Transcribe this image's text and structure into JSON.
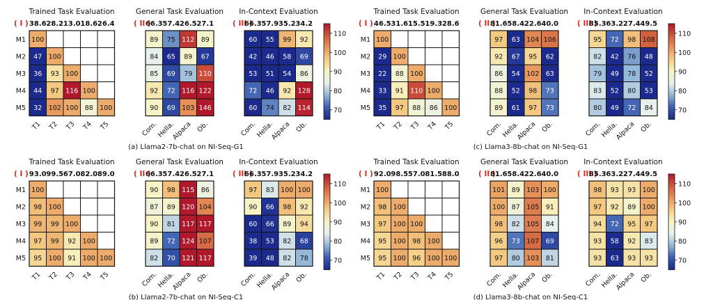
{
  "section_titles": [
    "Trained Task Evaluation",
    "General Task Evaluation",
    "In-Context Evaluation"
  ],
  "roman_labels": [
    "( I )",
    "( II )",
    "( III )"
  ],
  "colorbar_ticks": [
    70,
    80,
    90,
    100,
    110
  ],
  "colormap": [
    "#1b2a8c",
    "#3a5bb0",
    "#8fb3d6",
    "#e6f0ee",
    "#f8f4c6",
    "#f4cf86",
    "#e8955a",
    "#cf5a3e",
    "#b2182b"
  ],
  "chart_data": [
    {
      "type": "heatmap",
      "caption": "(a) Llama2-7b-chat on NI-Seq-G1",
      "rows": [
        "M1",
        "M2",
        "M3",
        "M4",
        "M5"
      ],
      "value_range": [
        65,
        115
      ],
      "panels": [
        {
          "columns": [
            "T1",
            "T2",
            "T3",
            "T4",
            "T5"
          ],
          "baseline": [
            "38.6",
            "28.2",
            "13.0",
            "18.6",
            "26.4"
          ],
          "values": [
            [
              100,
              null,
              null,
              null,
              null
            ],
            [
              47,
              100,
              null,
              null,
              null
            ],
            [
              36,
              93,
              100,
              null,
              null
            ],
            [
              44,
              97,
              116,
              100,
              null
            ],
            [
              32,
              102,
              100,
              88,
              100
            ]
          ]
        },
        {
          "columns": [
            "Com.",
            "Hella.",
            "Alpaca",
            "Ob."
          ],
          "baseline": [
            "66.3",
            "57.4",
            "26.5",
            "27.1"
          ],
          "values": [
            [
              89,
              75,
              112,
              89
            ],
            [
              84,
              65,
              89,
              67
            ],
            [
              85,
              69,
              79,
              110
            ],
            [
              92,
              72,
              116,
              122
            ],
            [
              90,
              69,
              103,
              146
            ]
          ]
        },
        {
          "columns": [
            "Com.",
            "Hella.",
            "Alpaca",
            "Ob."
          ],
          "baseline": [
            "66.3",
            "57.9",
            "35.2",
            "34.2"
          ],
          "values": [
            [
              60,
              55,
              99,
              92
            ],
            [
              42,
              46,
              58,
              69
            ],
            [
              53,
              51,
              54,
              86
            ],
            [
              72,
              46,
              92,
              128
            ],
            [
              60,
              74,
              82,
              114
            ]
          ]
        }
      ]
    },
    {
      "type": "heatmap",
      "caption": "(c) Llama3-8b-chat on NI-Seq-G1",
      "rows": [
        "M1",
        "M2",
        "M3",
        "M4",
        "M5"
      ],
      "value_range": [
        65,
        115
      ],
      "panels": [
        {
          "columns": [
            "T1",
            "T2",
            "T3",
            "T4",
            "T5"
          ],
          "baseline": [
            "46.5",
            "31.6",
            "15.5",
            "19.3",
            "28.6"
          ],
          "values": [
            [
              100,
              null,
              null,
              null,
              null
            ],
            [
              29,
              100,
              null,
              null,
              null
            ],
            [
              22,
              88,
              100,
              null,
              null
            ],
            [
              33,
              91,
              110,
              100,
              null
            ],
            [
              35,
              97,
              88,
              86,
              100
            ]
          ]
        },
        {
          "columns": [
            "Com.",
            "Hella.",
            "Alpaca",
            "Ob."
          ],
          "baseline": [
            "81.6",
            "58.4",
            "22.6",
            "40.0"
          ],
          "values": [
            [
              97,
              63,
              104,
              106
            ],
            [
              92,
              67,
              95,
              62
            ],
            [
              86,
              54,
              102,
              63
            ],
            [
              88,
              52,
              98,
              73
            ],
            [
              89,
              61,
              97,
              73
            ]
          ]
        },
        {
          "columns": [
            "Com.",
            "Hella.",
            "Alpaca",
            "Ob."
          ],
          "baseline": [
            "85.3",
            "63.2",
            "27.4",
            "49.5"
          ],
          "values": [
            [
              95,
              72,
              98,
              108
            ],
            [
              82,
              42,
              76,
              48
            ],
            [
              79,
              49,
              78,
              52
            ],
            [
              83,
              52,
              80,
              53
            ],
            [
              80,
              49,
              72,
              84
            ]
          ]
        }
      ]
    },
    {
      "type": "heatmap",
      "caption": "(b) Llama2-7b-chat on NI-Seq-C1",
      "rows": [
        "M1",
        "M2",
        "M3",
        "M4",
        "M5"
      ],
      "value_range": [
        65,
        115
      ],
      "panels": [
        {
          "columns": [
            "T1",
            "T2",
            "T3",
            "T4",
            "T5"
          ],
          "baseline": [
            "93.0",
            "99.5",
            "67.0",
            "82.0",
            "89.0"
          ],
          "values": [
            [
              100,
              null,
              null,
              null,
              null
            ],
            [
              98,
              100,
              null,
              null,
              null
            ],
            [
              99,
              99,
              100,
              null,
              null
            ],
            [
              97,
              99,
              92,
              100,
              null
            ],
            [
              95,
              100,
              91,
              100,
              100
            ]
          ]
        },
        {
          "columns": [
            "Com.",
            "Hella.",
            "Alpaca",
            "Ob."
          ],
          "baseline": [
            "66.3",
            "57.4",
            "26.5",
            "27.1"
          ],
          "values": [
            [
              90,
              98,
              115,
              86
            ],
            [
              87,
              89,
              120,
              104
            ],
            [
              90,
              81,
              117,
              117
            ],
            [
              89,
              72,
              124,
              107
            ],
            [
              82,
              70,
              121,
              117
            ]
          ]
        },
        {
          "columns": [
            "Com.",
            "Hella.",
            "Alpaca",
            "Ob."
          ],
          "baseline": [
            "66.3",
            "57.9",
            "35.2",
            "34.2"
          ],
          "values": [
            [
              97,
              83,
              100,
              100
            ],
            [
              90,
              66,
              98,
              92
            ],
            [
              60,
              66,
              89,
              94
            ],
            [
              38,
              53,
              82,
              68
            ],
            [
              39,
              48,
              82,
              78
            ]
          ]
        }
      ]
    },
    {
      "type": "heatmap",
      "caption": "(d) Llama3-8b-chat on NI-Seq-C1",
      "rows": [
        "M1",
        "M2",
        "M3",
        "M4",
        "M5"
      ],
      "value_range": [
        65,
        115
      ],
      "panels": [
        {
          "columns": [
            "T1",
            "T2",
            "T3",
            "T4",
            "T5"
          ],
          "baseline": [
            "92.0",
            "98.5",
            "57.0",
            "81.5",
            "88.0"
          ],
          "values": [
            [
              100,
              null,
              null,
              null,
              null
            ],
            [
              98,
              100,
              null,
              null,
              null
            ],
            [
              97,
              100,
              100,
              null,
              null
            ],
            [
              95,
              100,
              98,
              100,
              null
            ],
            [
              95,
              100,
              96,
              100,
              100
            ]
          ]
        },
        {
          "columns": [
            "Com.",
            "Hella.",
            "Alpaca",
            "Ob."
          ],
          "baseline": [
            "81.6",
            "58.4",
            "22.6",
            "40.0"
          ],
          "values": [
            [
              101,
              89,
              103,
              100
            ],
            [
              100,
              87,
              105,
              91
            ],
            [
              98,
              82,
              105,
              84
            ],
            [
              96,
              73,
              107,
              69
            ],
            [
              97,
              80,
              103,
              81
            ]
          ]
        },
        {
          "columns": [
            "Com.",
            "Hella.",
            "Alpaca",
            "Ob."
          ],
          "baseline": [
            "85.3",
            "63.2",
            "27.4",
            "49.5"
          ],
          "values": [
            [
              98,
              93,
              93,
              100
            ],
            [
              97,
              92,
              89,
              100
            ],
            [
              94,
              72,
              95,
              97
            ],
            [
              93,
              58,
              92,
              83
            ],
            [
              93,
              63,
              93,
              93
            ]
          ]
        }
      ]
    }
  ]
}
